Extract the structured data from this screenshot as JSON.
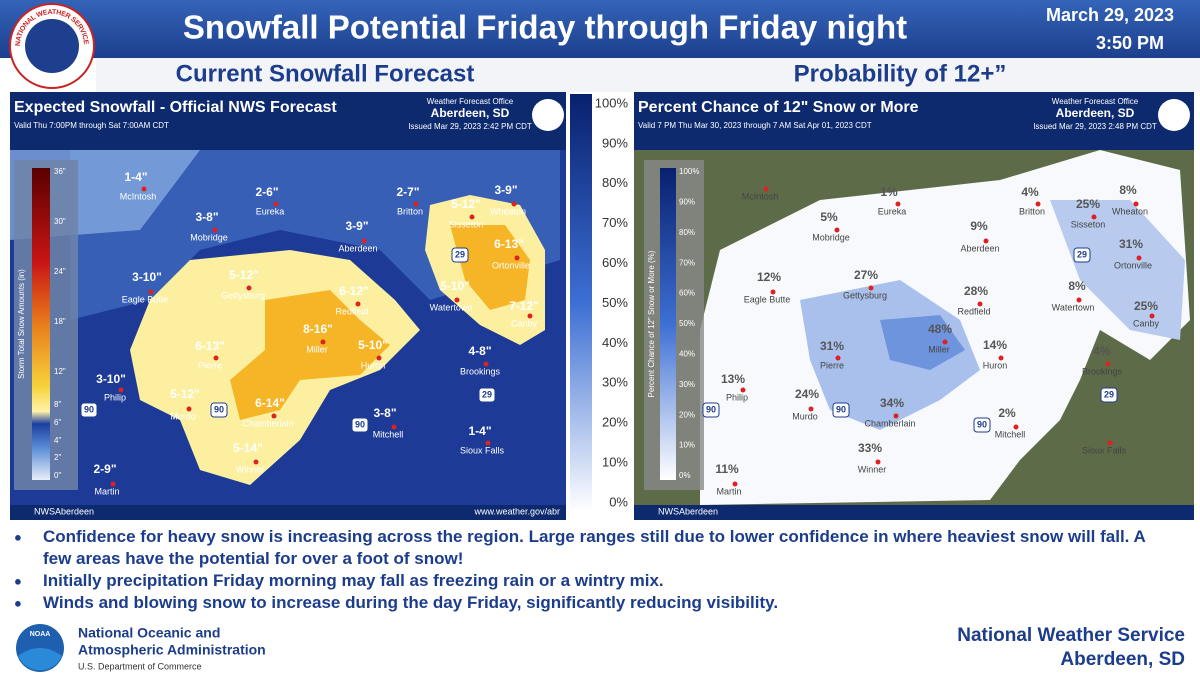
{
  "header": {
    "logo_text": "NATIONAL WEATHER SERVICE",
    "title": "Snowfall Potential Friday through Friday night",
    "date": "March 29, 2023",
    "time": "3:50 PM"
  },
  "left_panel": {
    "subtitle": "Current Snowfall Forecast",
    "map_title": "Expected Snowfall - Official NWS Forecast",
    "valid": "Valid Thu 7:00PM through Sat 7:00AM CDT",
    "office": "Weather Forecast Office",
    "office_city": "Aberdeen, SD",
    "issued": "Issued Mar 29, 2023 2:42 PM CDT",
    "legend_title": "Storm Total Snow Amounts (in)",
    "legend_ticks": [
      "36\"",
      "30\"",
      "24\"",
      "18\"",
      "12\"",
      "8\"",
      "6\"",
      "4\"",
      "2\"",
      "0\""
    ],
    "social": "NWSAberdeen",
    "url": "www.weather.gov/abr",
    "shields": [
      "90",
      "90",
      "90",
      "29",
      "29"
    ],
    "places": [
      {
        "name": "McIntosh",
        "amount": "1-4\""
      },
      {
        "name": "Eureka",
        "amount": "2-6\""
      },
      {
        "name": "Britton",
        "amount": "2-7\""
      },
      {
        "name": "Wheaton",
        "amount": "3-9\""
      },
      {
        "name": "Mobridge",
        "amount": "3-8\""
      },
      {
        "name": "Aberdeen",
        "amount": "3-9\""
      },
      {
        "name": "Sisseton",
        "amount": "5-12\""
      },
      {
        "name": "Ortonville",
        "amount": "6-13\""
      },
      {
        "name": "Eagle Butte",
        "amount": "3-10\""
      },
      {
        "name": "Gettysburg",
        "amount": "5-12\""
      },
      {
        "name": "Redfield",
        "amount": "6-12\""
      },
      {
        "name": "Watertown",
        "amount": "5-10\""
      },
      {
        "name": "Canby",
        "amount": "7-12\""
      },
      {
        "name": "Miller",
        "amount": "8-16\""
      },
      {
        "name": "Huron",
        "amount": "5-10\""
      },
      {
        "name": "Pierre",
        "amount": "6-13\""
      },
      {
        "name": "Brookings",
        "amount": "4-8\""
      },
      {
        "name": "Philip",
        "amount": "3-10\""
      },
      {
        "name": "Murdo",
        "amount": "5-12\""
      },
      {
        "name": "Chamberlain",
        "amount": "6-14\""
      },
      {
        "name": "Mitchell",
        "amount": "3-8\""
      },
      {
        "name": "Sioux Falls",
        "amount": "1-4\""
      },
      {
        "name": "Winner",
        "amount": "5-14\""
      },
      {
        "name": "Martin",
        "amount": "2-9\""
      }
    ]
  },
  "center_scale": [
    "100%",
    "90%",
    "80%",
    "70%",
    "60%",
    "50%",
    "40%",
    "30%",
    "20%",
    "10%",
    "0%"
  ],
  "right_panel": {
    "subtitle": "Probability of 12+”",
    "map_title": "Percent Chance of 12\" Snow or More",
    "valid": "Valid 7 PM Thu Mar 30, 2023 through 7 AM Sat Apr 01, 2023 CDT",
    "office": "Weather Forecast Office",
    "office_city": "Aberdeen, SD",
    "issued": "Issued Mar 29, 2023 2:48 PM CDT",
    "legend_title": "Percent Chance of 12\" Snow or More (%)",
    "legend_ticks": [
      "100%",
      "90%",
      "80%",
      "70%",
      "60%",
      "50%",
      "40%",
      "30%",
      "20%",
      "10%",
      "0%"
    ],
    "social": "NWSAberdeen",
    "shields": [
      "90",
      "90",
      "90",
      "29",
      "29"
    ],
    "places": [
      {
        "name": "McIntosh"
      },
      {
        "name": "Eureka",
        "amount": "1%"
      },
      {
        "name": "Britton",
        "amount": "4%"
      },
      {
        "name": "Wheaton",
        "amount": "8%"
      },
      {
        "name": "Mobridge",
        "amount": "5%"
      },
      {
        "name": "Aberdeen",
        "amount": "9%"
      },
      {
        "name": "Sisseton",
        "amount": "25%"
      },
      {
        "name": "Ortonville",
        "amount": "31%"
      },
      {
        "name": "Eagle Butte",
        "amount": "12%"
      },
      {
        "name": "Gettysburg",
        "amount": "27%"
      },
      {
        "name": "Redfield",
        "amount": "28%"
      },
      {
        "name": "Watertown",
        "amount": "8%"
      },
      {
        "name": "Canby",
        "amount": "25%"
      },
      {
        "name": "Miller",
        "amount": "48%"
      },
      {
        "name": "Huron",
        "amount": "14%"
      },
      {
        "name": "Pierre",
        "amount": "31%"
      },
      {
        "name": "Brookings",
        "amount": "4%"
      },
      {
        "name": "Philip",
        "amount": "13%"
      },
      {
        "name": "Murdo",
        "amount": "24%"
      },
      {
        "name": "Chamberlain",
        "amount": "34%"
      },
      {
        "name": "Mitchell",
        "amount": "2%"
      },
      {
        "name": "Sioux Falls"
      },
      {
        "name": "Winner",
        "amount": "33%"
      },
      {
        "name": "Martin",
        "amount": "11%"
      }
    ]
  },
  "bullets": [
    "Confidence for heavy snow is increasing across the region.  Large ranges still due to lower confidence in where heaviest snow will fall. A few areas have the potential for over a foot of snow!",
    "Initially precipitation Friday morning may fall as freezing rain or a wintry mix.",
    "Winds and blowing snow to increase during the day Friday, significantly reducing visibility."
  ],
  "footer": {
    "noaa_logo": "NOAA",
    "noaa_line1": "National Oceanic and",
    "noaa_line2": "Atmospheric Administration",
    "noaa_line3": "U.S. Department of Commerce",
    "nws": "National Weather Service",
    "nws_city": "Aberdeen, SD"
  }
}
